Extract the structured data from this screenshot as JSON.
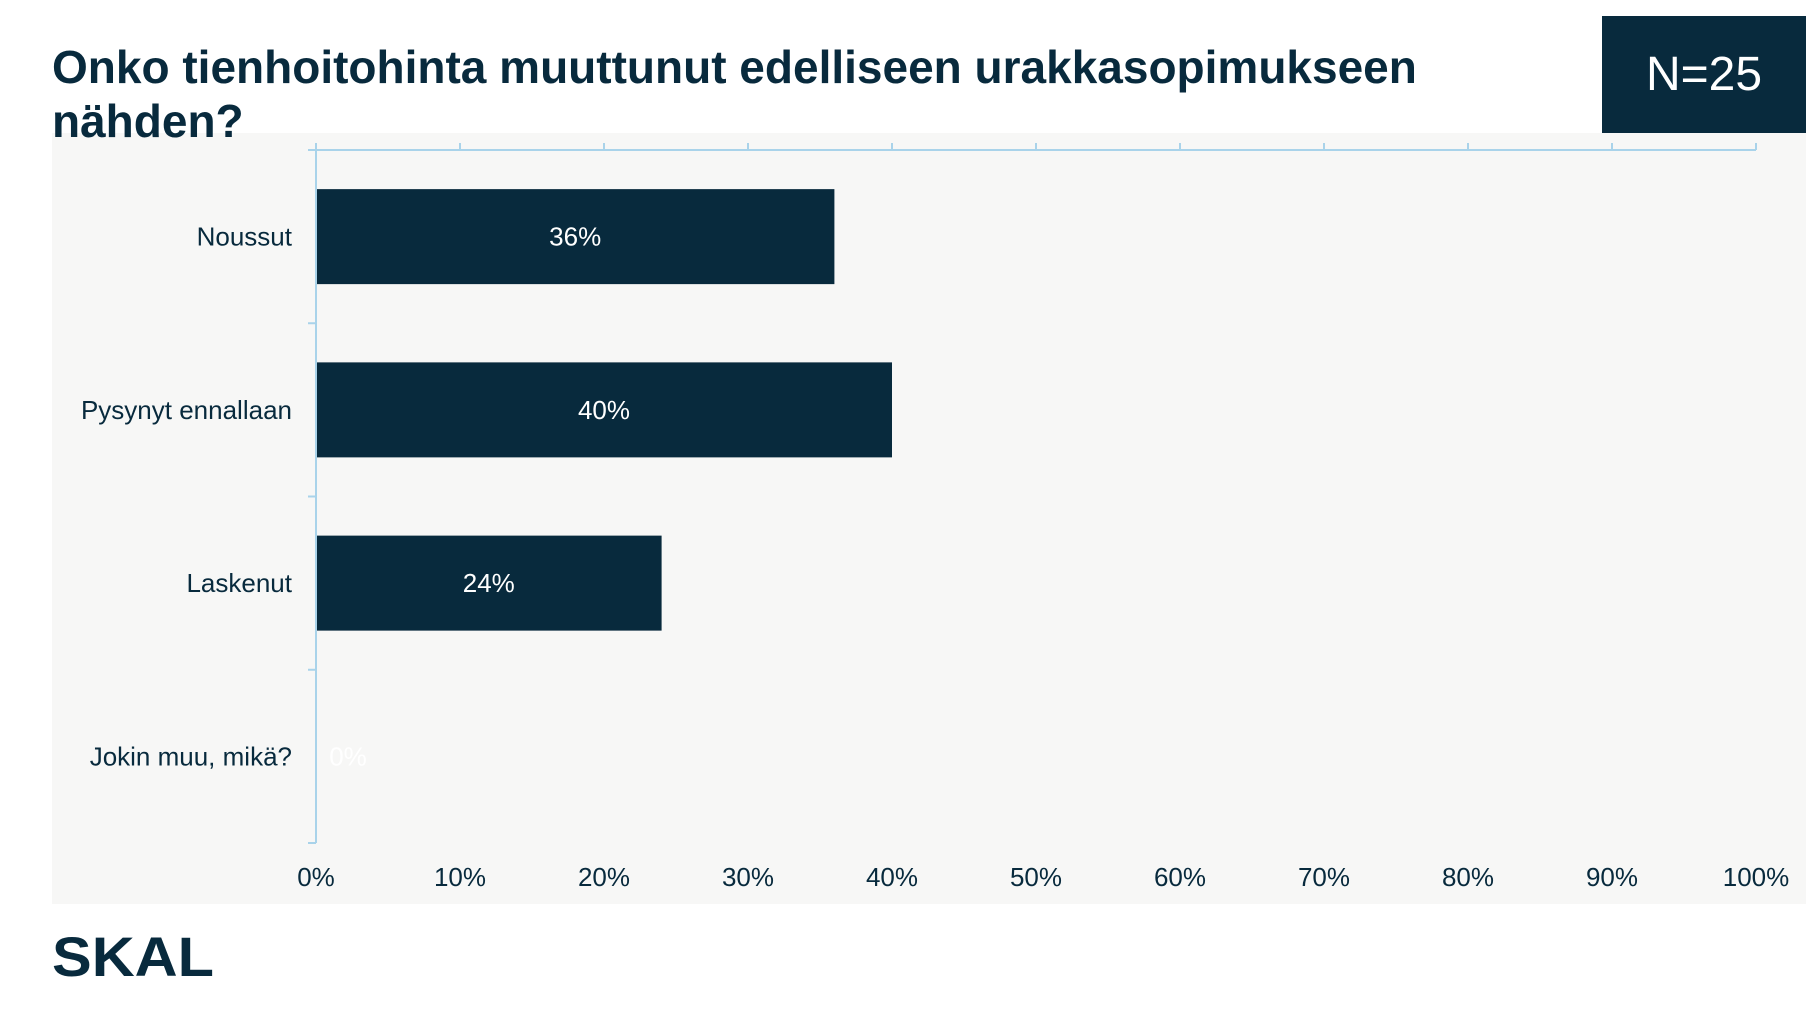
{
  "header": {
    "title": "Onko tienhoitohinta muuttunut edelliseen urakkasopimukseen nähden?",
    "sample_size": "N=25"
  },
  "branding": {
    "logo_text": "SKAL"
  },
  "colors": {
    "bar": "#082a3d",
    "axis": "#a9d3ea",
    "panel": "#f7f7f6",
    "text": "#082a3d",
    "data_label": "#ffffff"
  },
  "chart_data": {
    "type": "bar",
    "orientation": "horizontal",
    "title": "Onko tienhoitohinta muuttunut edelliseen urakkasopimukseen nähden?",
    "categories": [
      "Noussut",
      "Pysynyt ennallaan",
      "Laskenut",
      "Jokin muu, mikä?"
    ],
    "values": [
      36,
      40,
      24,
      0
    ],
    "data_labels": [
      "36%",
      "40%",
      "24%",
      "0%"
    ],
    "xlim": [
      0,
      100
    ],
    "x_ticks": [
      0,
      10,
      20,
      30,
      40,
      50,
      60,
      70,
      80,
      90,
      100
    ],
    "x_tick_labels": [
      "0%",
      "10%",
      "20%",
      "30%",
      "40%",
      "50%",
      "60%",
      "70%",
      "80%",
      "90%",
      "100%"
    ],
    "xlabel": "",
    "ylabel": "",
    "grid": false,
    "legend": "none"
  }
}
